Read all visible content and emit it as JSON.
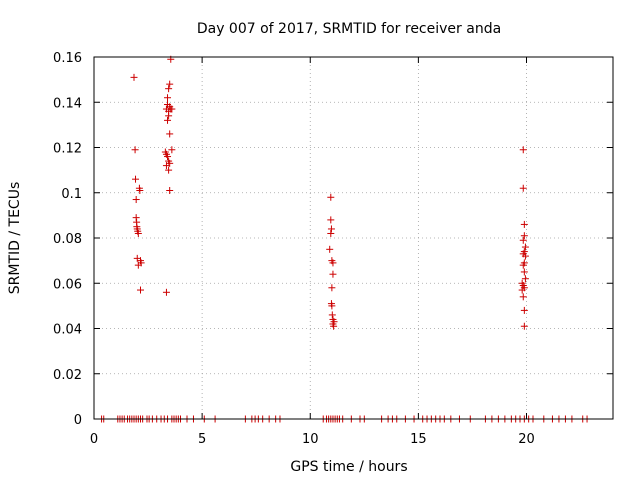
{
  "chart_data": {
    "type": "scatter",
    "title": "Day 007 of 2017, SRMTID for receiver anda",
    "xlabel": "GPS time / hours",
    "ylabel": "SRMTID / TECUs",
    "xlim": [
      0,
      24
    ],
    "ylim": [
      0,
      0.16
    ],
    "x_ticks": [
      0,
      5,
      10,
      15,
      20
    ],
    "x_tick_labels": [
      "0",
      "5",
      "10",
      "15",
      "20"
    ],
    "y_ticks": [
      0,
      0.02,
      0.04,
      0.06,
      0.08,
      0.1,
      0.12,
      0.14,
      0.16
    ],
    "y_tick_labels": [
      "0",
      "0.02",
      "0.04",
      "0.06",
      "0.08",
      "0.1",
      "0.12",
      "0.14",
      "0.16"
    ],
    "grid": true,
    "marker": "+",
    "color": "#cc0000",
    "series": [
      {
        "name": "SRMTID",
        "points": [
          [
            1.85,
            0.151
          ],
          [
            1.9,
            0.119
          ],
          [
            1.92,
            0.106
          ],
          [
            1.95,
            0.097
          ],
          [
            1.95,
            0.089
          ],
          [
            1.97,
            0.087
          ],
          [
            1.98,
            0.085
          ],
          [
            2.0,
            0.084
          ],
          [
            2.02,
            0.083
          ],
          [
            2.05,
            0.082
          ],
          [
            2.1,
            0.102
          ],
          [
            2.12,
            0.101
          ],
          [
            2.0,
            0.071
          ],
          [
            2.05,
            0.068
          ],
          [
            2.15,
            0.07
          ],
          [
            2.18,
            0.069
          ],
          [
            2.15,
            0.057
          ],
          [
            3.55,
            0.159
          ],
          [
            3.5,
            0.148
          ],
          [
            3.45,
            0.146
          ],
          [
            3.4,
            0.142
          ],
          [
            3.4,
            0.139
          ],
          [
            3.5,
            0.138
          ],
          [
            3.55,
            0.137
          ],
          [
            3.35,
            0.137
          ],
          [
            3.45,
            0.136
          ],
          [
            3.6,
            0.137
          ],
          [
            3.45,
            0.134
          ],
          [
            3.4,
            0.132
          ],
          [
            3.5,
            0.126
          ],
          [
            3.6,
            0.119
          ],
          [
            3.3,
            0.118
          ],
          [
            3.35,
            0.117
          ],
          [
            3.4,
            0.116
          ],
          [
            3.45,
            0.114
          ],
          [
            3.5,
            0.113
          ],
          [
            3.35,
            0.112
          ],
          [
            3.45,
            0.11
          ],
          [
            3.5,
            0.101
          ],
          [
            3.35,
            0.056
          ],
          [
            10.95,
            0.098
          ],
          [
            10.95,
            0.088
          ],
          [
            10.98,
            0.084
          ],
          [
            10.95,
            0.082
          ],
          [
            10.9,
            0.075
          ],
          [
            11.0,
            0.07
          ],
          [
            11.05,
            0.069
          ],
          [
            11.05,
            0.064
          ],
          [
            11.0,
            0.058
          ],
          [
            10.98,
            0.051
          ],
          [
            11.0,
            0.05
          ],
          [
            11.02,
            0.046
          ],
          [
            11.05,
            0.044
          ],
          [
            11.1,
            0.043
          ],
          [
            11.05,
            0.042
          ],
          [
            11.08,
            0.041
          ],
          [
            19.85,
            0.119
          ],
          [
            19.85,
            0.102
          ],
          [
            19.9,
            0.086
          ],
          [
            19.9,
            0.081
          ],
          [
            19.85,
            0.079
          ],
          [
            19.95,
            0.076
          ],
          [
            19.9,
            0.074
          ],
          [
            19.85,
            0.073
          ],
          [
            19.95,
            0.072
          ],
          [
            19.9,
            0.069
          ],
          [
            19.85,
            0.068
          ],
          [
            19.9,
            0.065
          ],
          [
            19.95,
            0.062
          ],
          [
            19.8,
            0.06
          ],
          [
            19.85,
            0.059
          ],
          [
            19.9,
            0.058
          ],
          [
            19.8,
            0.057
          ],
          [
            19.85,
            0.054
          ],
          [
            19.9,
            0.048
          ],
          [
            19.9,
            0.041
          ],
          [
            0.35,
            0
          ],
          [
            0.45,
            0
          ],
          [
            1.1,
            0
          ],
          [
            1.2,
            0
          ],
          [
            1.3,
            0
          ],
          [
            1.4,
            0
          ],
          [
            1.55,
            0
          ],
          [
            1.65,
            0
          ],
          [
            1.75,
            0
          ],
          [
            1.85,
            0
          ],
          [
            1.95,
            0
          ],
          [
            2.05,
            0
          ],
          [
            2.15,
            0
          ],
          [
            2.25,
            0
          ],
          [
            2.45,
            0
          ],
          [
            2.55,
            0
          ],
          [
            2.7,
            0
          ],
          [
            2.9,
            0
          ],
          [
            3.1,
            0
          ],
          [
            3.25,
            0
          ],
          [
            3.4,
            0
          ],
          [
            3.6,
            0
          ],
          [
            3.7,
            0
          ],
          [
            3.8,
            0
          ],
          [
            3.9,
            0
          ],
          [
            4.0,
            0
          ],
          [
            4.3,
            0
          ],
          [
            4.6,
            0
          ],
          [
            5.1,
            0
          ],
          [
            5.6,
            0
          ],
          [
            7.0,
            0
          ],
          [
            7.3,
            0
          ],
          [
            7.45,
            0
          ],
          [
            7.6,
            0
          ],
          [
            7.8,
            0
          ],
          [
            8.1,
            0
          ],
          [
            8.4,
            0
          ],
          [
            8.6,
            0
          ],
          [
            10.6,
            0
          ],
          [
            10.75,
            0
          ],
          [
            10.85,
            0
          ],
          [
            10.95,
            0
          ],
          [
            11.05,
            0
          ],
          [
            11.15,
            0
          ],
          [
            11.25,
            0
          ],
          [
            11.35,
            0
          ],
          [
            11.5,
            0
          ],
          [
            11.9,
            0
          ],
          [
            12.3,
            0
          ],
          [
            12.5,
            0
          ],
          [
            13.3,
            0
          ],
          [
            13.6,
            0
          ],
          [
            13.8,
            0
          ],
          [
            14.0,
            0
          ],
          [
            14.4,
            0
          ],
          [
            14.8,
            0
          ],
          [
            15.2,
            0
          ],
          [
            15.4,
            0
          ],
          [
            15.6,
            0
          ],
          [
            15.8,
            0
          ],
          [
            16.0,
            0
          ],
          [
            16.2,
            0
          ],
          [
            16.5,
            0
          ],
          [
            16.9,
            0
          ],
          [
            17.4,
            0
          ],
          [
            18.1,
            0
          ],
          [
            18.4,
            0
          ],
          [
            18.7,
            0
          ],
          [
            19.0,
            0
          ],
          [
            19.3,
            0
          ],
          [
            19.5,
            0
          ],
          [
            19.7,
            0
          ],
          [
            19.9,
            0
          ],
          [
            20.1,
            0
          ],
          [
            20.3,
            0
          ],
          [
            20.8,
            0
          ],
          [
            21.2,
            0
          ],
          [
            21.5,
            0
          ],
          [
            21.8,
            0
          ],
          [
            22.1,
            0
          ],
          [
            22.6,
            0
          ],
          [
            22.8,
            0
          ]
        ]
      }
    ]
  }
}
